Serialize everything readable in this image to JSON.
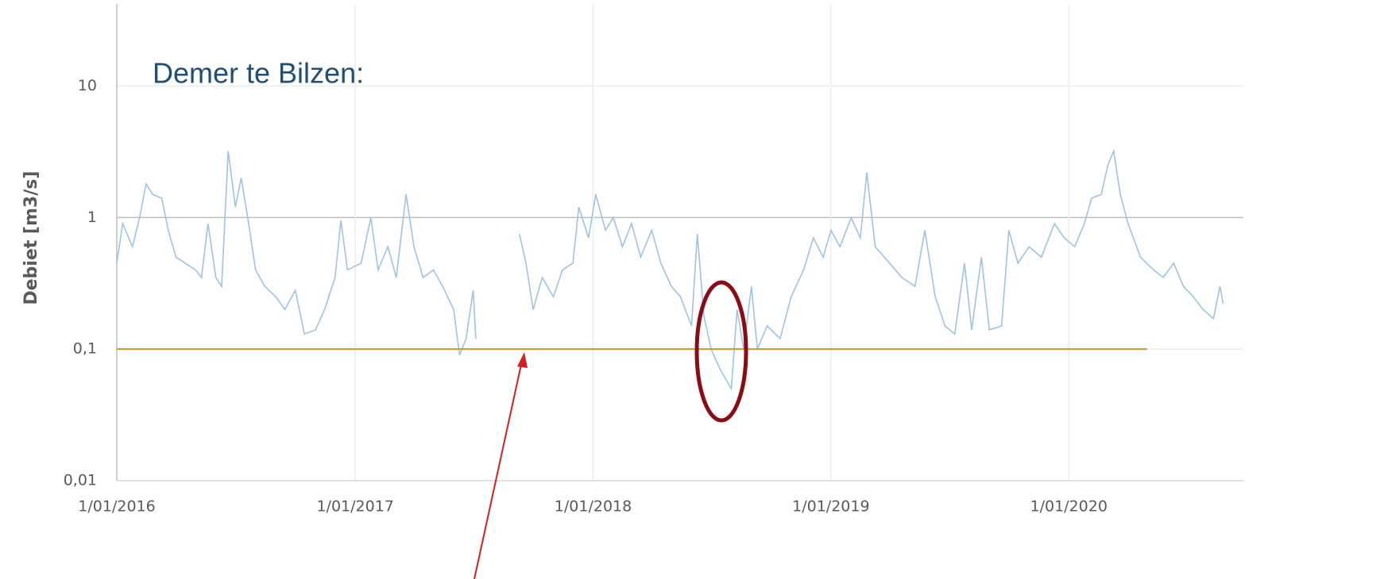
{
  "chart_data": {
    "type": "line",
    "annotation": "Demer te Bilzen:",
    "y_label": "Debiet [m3/s]",
    "log_y": true,
    "grid": true,
    "xlim": [
      "2016-01-01",
      "2020-09-25"
    ],
    "xticks": [
      {
        "value": "2016-01-01",
        "label": "1/01/2016"
      },
      {
        "value": "2017-01-01",
        "label": "1/01/2017"
      },
      {
        "value": "2018-01-01",
        "label": "1/01/2018"
      },
      {
        "value": "2019-01-01",
        "label": "1/01/2019"
      },
      {
        "value": "2020-01-01",
        "label": "1/01/2020"
      }
    ],
    "ylim": [
      0.01,
      42
    ],
    "yticks": [
      {
        "value": 0.01,
        "label": "0,01"
      },
      {
        "value": 0.1,
        "label": "0,1"
      },
      1,
      10
    ],
    "series": [
      {
        "color": "#9dc3e6",
        "x": [
          "2016-01-01",
          "2016-01-10",
          "2016-01-25",
          "2016-02-05",
          "2016-02-15",
          "2016-02-25",
          "2016-03-10",
          "2016-03-20",
          "2016-04-01",
          "2016-04-15",
          "2016-05-01",
          "2016-05-10",
          "2016-05-20",
          "2016-06-01",
          "2016-06-10",
          "2016-06-20",
          "2016-07-01",
          "2016-07-10",
          "2016-07-20",
          "2016-08-01",
          "2016-08-15",
          "2016-09-01",
          "2016-09-15",
          "2016-10-01",
          "2016-10-15",
          "2016-11-01",
          "2016-11-15",
          "2016-12-01",
          "2016-12-10",
          "2016-12-20",
          "2017-01-10",
          "2017-01-25",
          "2017-02-05",
          "2017-02-20",
          "2017-03-05",
          "2017-03-20",
          "2017-04-01",
          "2017-04-15",
          "2017-05-01",
          "2017-05-15",
          "2017-06-01",
          "2017-06-10",
          "2017-06-20",
          "2017-07-01",
          "2017-07-05",
          "2017-07-10",
          "2017-09-10",
          "2017-09-20",
          "2017-10-01",
          "2017-10-15",
          "2017-11-01",
          "2017-11-15",
          "2017-12-01",
          "2017-12-10",
          "2017-12-25",
          "2018-01-05",
          "2018-01-20",
          "2018-02-01",
          "2018-02-15",
          "2018-03-01",
          "2018-03-15",
          "2018-04-01",
          "2018-04-15",
          "2018-05-01",
          "2018-05-15",
          "2018-06-01",
          "2018-06-10",
          "2018-06-20",
          "2018-07-01",
          "2018-07-15",
          "2018-08-01",
          "2018-08-10",
          "2018-08-20",
          "2018-09-01",
          "2018-09-10",
          "2018-09-25",
          "2018-10-15",
          "2018-11-01",
          "2018-11-20",
          "2018-12-05",
          "2018-12-20",
          "2019-01-01",
          "2019-01-15",
          "2019-02-01",
          "2019-02-15",
          "2019-02-25",
          "2019-03-10",
          "2019-04-01",
          "2019-04-20",
          "2019-05-10",
          "2019-05-25",
          "2019-06-10",
          "2019-06-25",
          "2019-07-10",
          "2019-07-25",
          "2019-08-05",
          "2019-08-20",
          "2019-09-01",
          "2019-09-20",
          "2019-10-01",
          "2019-10-15",
          "2019-11-01",
          "2019-11-20",
          "2019-12-10",
          "2019-12-25",
          "2020-01-10",
          "2020-01-25",
          "2020-02-05",
          "2020-02-20",
          "2020-03-01",
          "2020-03-10",
          "2020-03-20",
          "2020-04-01",
          "2020-04-20",
          "2020-05-10",
          "2020-05-25",
          "2020-06-10",
          "2020-06-25",
          "2020-07-10",
          "2020-07-25",
          "2020-08-10",
          "2020-08-20",
          "2020-08-25"
        ],
        "values": [
          0.45,
          0.9,
          0.6,
          1.0,
          1.8,
          1.5,
          1.4,
          0.8,
          0.5,
          0.45,
          0.4,
          0.35,
          0.9,
          0.35,
          0.3,
          3.2,
          1.2,
          2.0,
          1.0,
          0.4,
          0.3,
          0.25,
          0.2,
          0.28,
          0.13,
          0.14,
          0.2,
          0.35,
          0.95,
          0.4,
          0.45,
          1.0,
          0.4,
          0.6,
          0.35,
          1.5,
          0.6,
          0.35,
          0.4,
          0.3,
          0.2,
          0.09,
          0.12,
          0.28,
          0.12,
          null,
          0.75,
          0.45,
          0.2,
          0.35,
          0.25,
          0.4,
          0.45,
          1.2,
          0.7,
          1.5,
          0.8,
          1.0,
          0.6,
          0.9,
          0.5,
          0.8,
          0.45,
          0.3,
          0.25,
          0.15,
          0.75,
          0.18,
          0.1,
          0.07,
          0.05,
          0.2,
          0.1,
          0.3,
          0.1,
          0.15,
          0.12,
          0.25,
          0.4,
          0.7,
          0.5,
          0.8,
          0.6,
          1.0,
          0.7,
          2.2,
          0.6,
          0.45,
          0.35,
          0.3,
          0.8,
          0.25,
          0.15,
          0.13,
          0.45,
          0.14,
          0.5,
          0.14,
          0.15,
          0.8,
          0.45,
          0.6,
          0.5,
          0.9,
          0.7,
          0.6,
          0.9,
          1.4,
          1.5,
          2.5,
          3.2,
          1.5,
          0.9,
          0.5,
          0.4,
          0.35,
          0.45,
          0.3,
          0.25,
          0.2,
          0.17,
          0.3,
          0.22
        ]
      },
      {
        "color": "#c9a227",
        "x": [
          "2016-01-01",
          "2020-04-30"
        ],
        "values": [
          0.1,
          0.1
        ]
      }
    ]
  }
}
